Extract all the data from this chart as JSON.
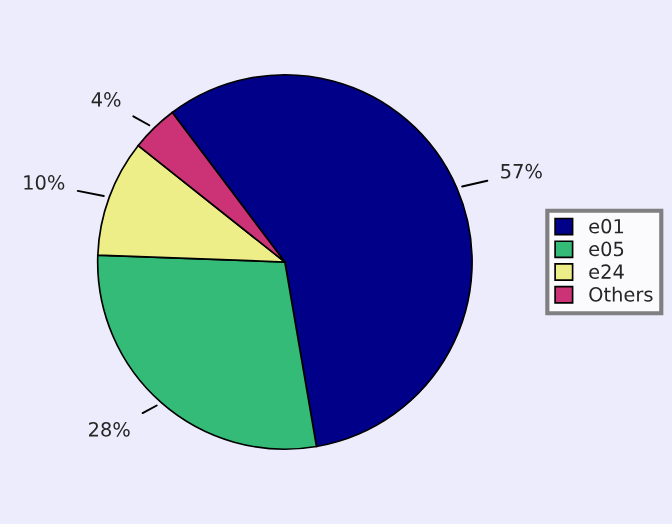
{
  "chart_data": {
    "type": "pie",
    "categories": [
      "e01",
      "e05",
      "e24",
      "Others"
    ],
    "values": [
      57,
      28,
      10,
      4
    ],
    "value_labels": [
      "57%",
      "28%",
      "10%",
      "4%"
    ],
    "colors": [
      "#000088",
      "#33bb77",
      "#eeee88",
      "#cc3377"
    ],
    "legend": "right"
  }
}
